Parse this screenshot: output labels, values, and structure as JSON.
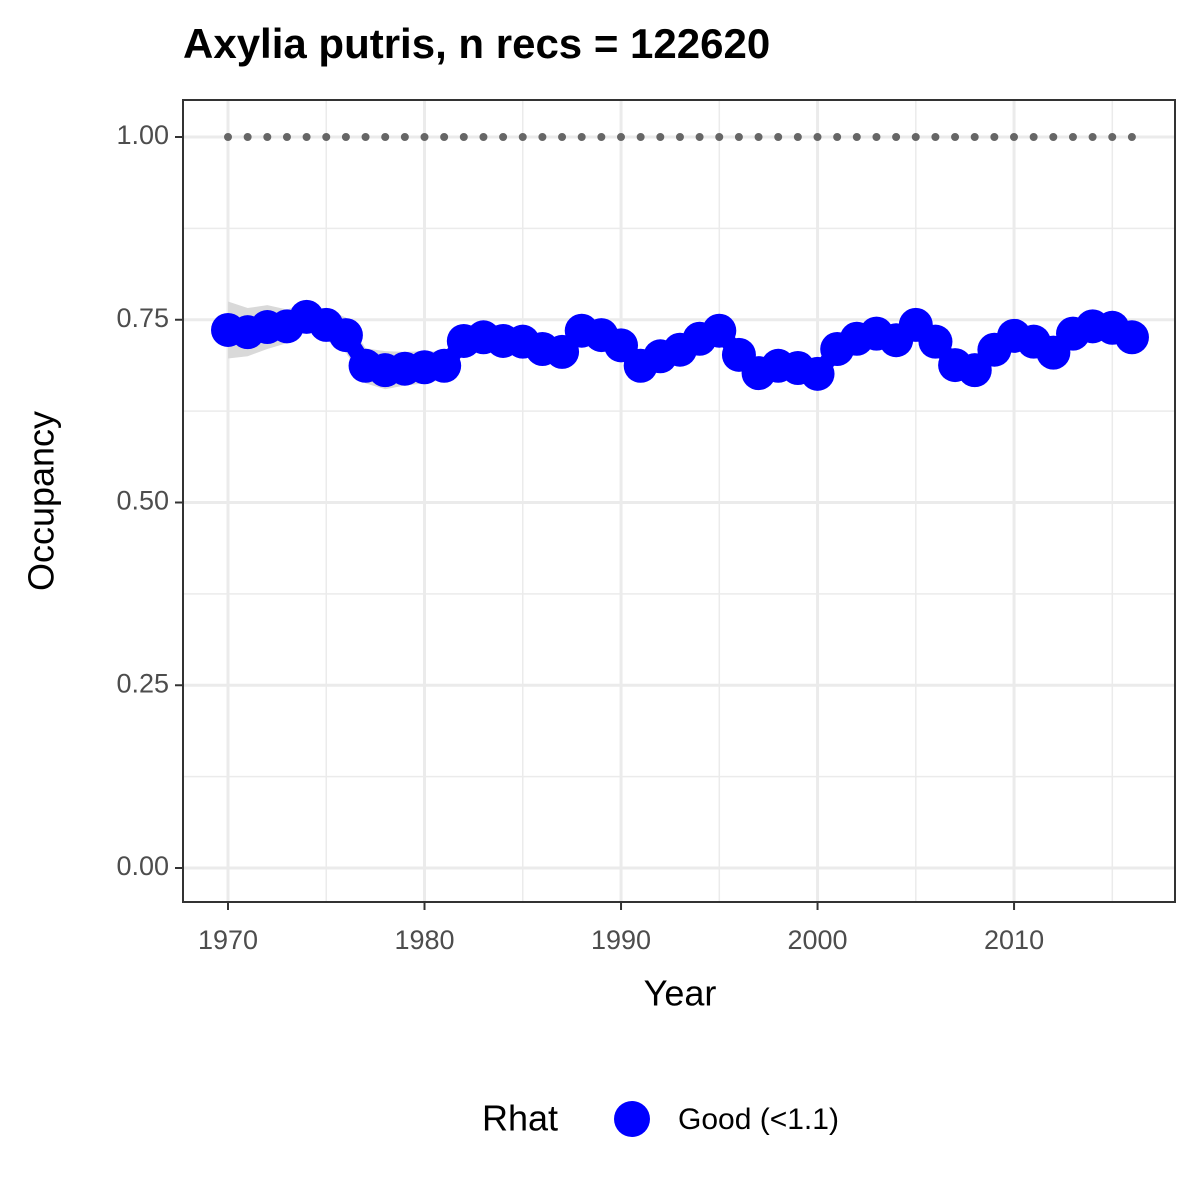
{
  "chart_data": {
    "type": "line",
    "title": "Axylia putris, n recs = 122620",
    "x_label": "Year",
    "y_label": "Occupancy",
    "legend_title": "Rhat",
    "x": [
      1970,
      1971,
      1972,
      1973,
      1974,
      1975,
      1976,
      1977,
      1978,
      1979,
      1980,
      1981,
      1982,
      1983,
      1984,
      1985,
      1986,
      1987,
      1988,
      1989,
      1990,
      1991,
      1992,
      1993,
      1994,
      1995,
      1996,
      1997,
      1998,
      1999,
      2000,
      2001,
      2002,
      2003,
      2004,
      2005,
      2006,
      2007,
      2008,
      2009,
      2010,
      2011,
      2012,
      2013,
      2014,
      2015,
      2016
    ],
    "series": [
      {
        "name": "Good (<1.1)",
        "color": "#0000ff",
        "values": [
          0.736,
          0.733,
          0.74,
          0.741,
          0.754,
          0.743,
          0.729,
          0.687,
          0.681,
          0.683,
          0.685,
          0.687,
          0.721,
          0.726,
          0.721,
          0.72,
          0.71,
          0.706,
          0.735,
          0.729,
          0.715,
          0.687,
          0.7,
          0.709,
          0.724,
          0.735,
          0.702,
          0.677,
          0.687,
          0.684,
          0.676,
          0.71,
          0.724,
          0.731,
          0.722,
          0.743,
          0.72,
          0.688,
          0.681,
          0.709,
          0.728,
          0.72,
          0.705,
          0.731,
          0.741,
          0.739,
          0.726
        ],
        "lower": [
          0.697,
          0.7,
          0.71,
          0.718,
          0.735,
          0.722,
          0.705,
          0.663,
          0.655,
          0.66,
          0.663,
          0.668,
          0.705,
          0.712,
          0.708,
          0.707,
          0.697,
          0.693,
          0.722,
          0.716,
          0.702,
          0.674,
          0.687,
          0.697,
          0.712,
          0.723,
          0.69,
          0.664,
          0.674,
          0.671,
          0.663,
          0.697,
          0.711,
          0.718,
          0.709,
          0.73,
          0.707,
          0.675,
          0.668,
          0.696,
          0.715,
          0.707,
          0.692,
          0.717,
          0.726,
          0.722,
          0.703
        ],
        "upper": [
          0.775,
          0.766,
          0.77,
          0.764,
          0.773,
          0.764,
          0.753,
          0.711,
          0.707,
          0.706,
          0.707,
          0.706,
          0.737,
          0.74,
          0.734,
          0.733,
          0.723,
          0.719,
          0.748,
          0.742,
          0.728,
          0.7,
          0.713,
          0.721,
          0.736,
          0.747,
          0.714,
          0.69,
          0.7,
          0.697,
          0.689,
          0.723,
          0.737,
          0.744,
          0.735,
          0.756,
          0.733,
          0.701,
          0.694,
          0.722,
          0.741,
          0.733,
          0.718,
          0.745,
          0.756,
          0.756,
          0.749
        ]
      }
    ],
    "reference_line": {
      "y": 1,
      "x": [
        1970,
        2016
      ],
      "color": "#666666"
    },
    "xlim": [
      1967.71,
      2018.19
    ],
    "ylim": [
      -0.0465,
      1.0506
    ],
    "xticks": [
      1970,
      1980,
      1990,
      2000,
      2010
    ],
    "xminor": [
      1975,
      1985,
      1995,
      2005,
      2015
    ],
    "yticks": [
      {
        "value": 0,
        "label": "0.00"
      },
      {
        "value": 0.25,
        "label": "0.25"
      },
      {
        "value": 0.5,
        "label": "0.50"
      },
      {
        "value": 0.75,
        "label": "0.75"
      },
      {
        "value": 1,
        "label": "1.00"
      }
    ],
    "yminor": [
      0.125,
      0.375,
      0.625,
      0.875
    ],
    "band_color": "#d9d9d9",
    "grid": true,
    "legend": "bottom"
  }
}
